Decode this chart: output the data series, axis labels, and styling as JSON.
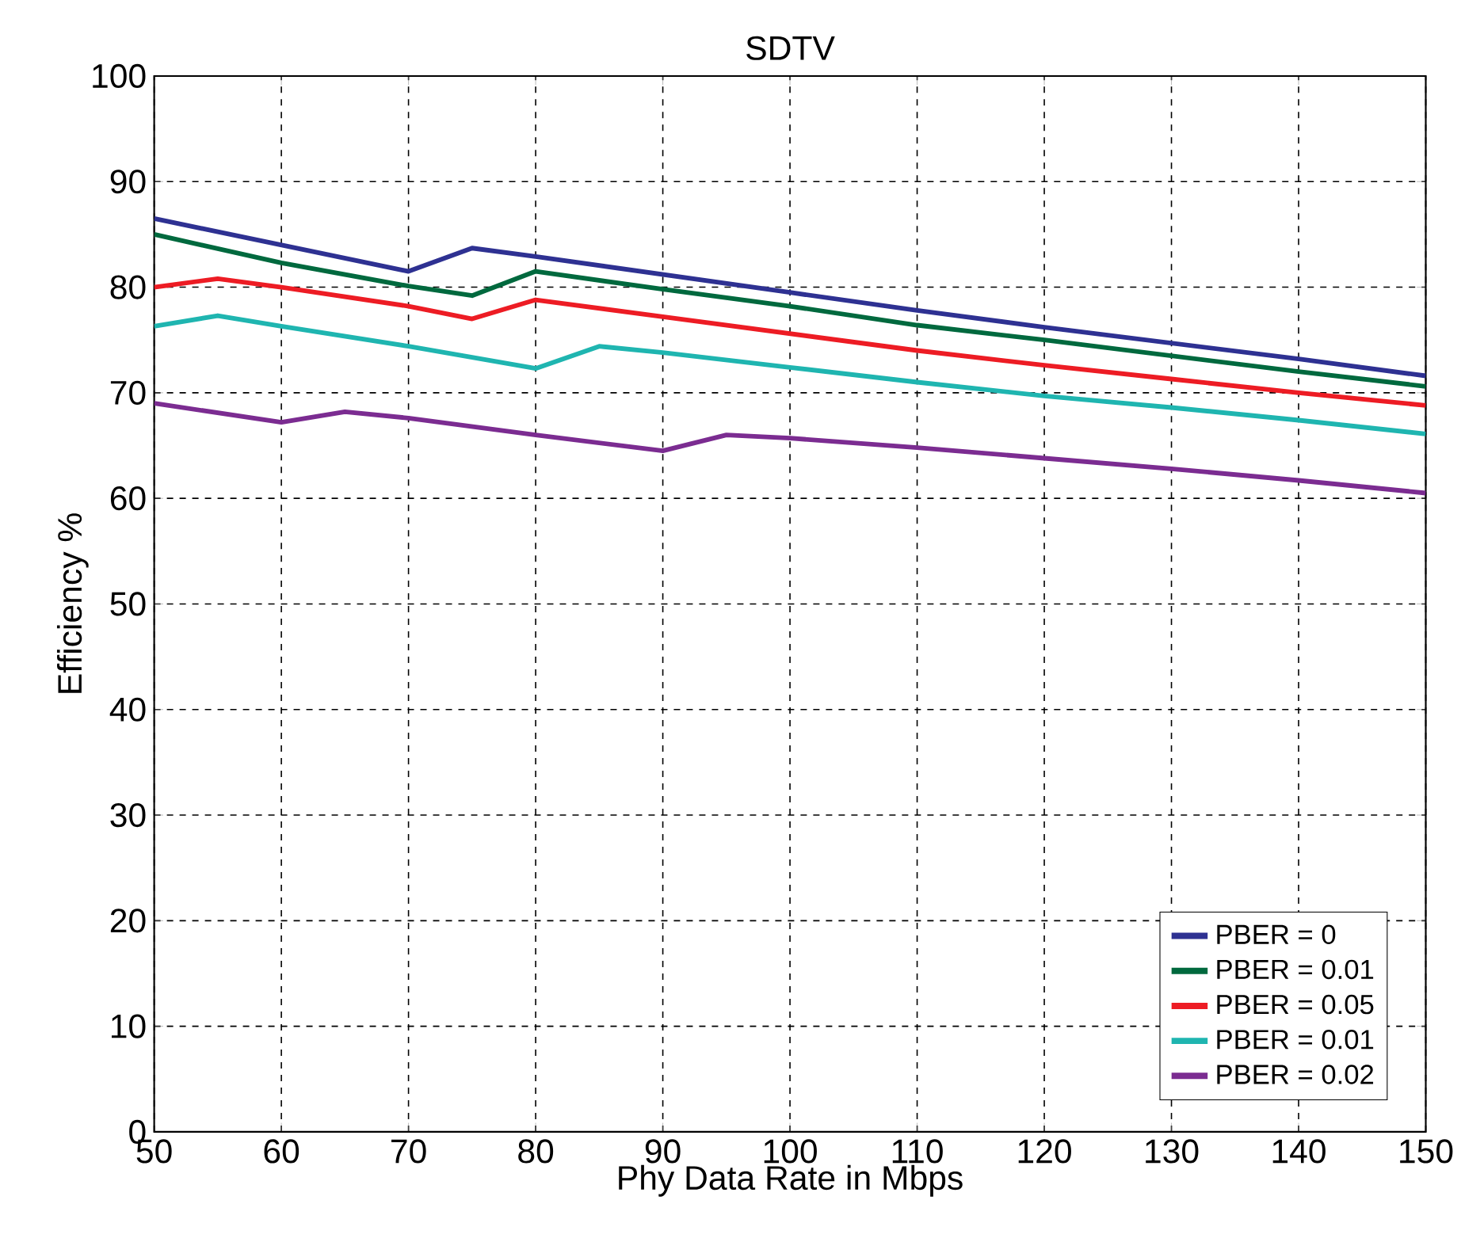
{
  "chart_data": {
    "type": "line",
    "title": "SDTV",
    "xlabel": "Phy Data Rate in Mbps",
    "ylabel": "Efficiency %",
    "xlim": [
      50,
      150
    ],
    "ylim": [
      0,
      100
    ],
    "xticks": [
      50,
      60,
      70,
      80,
      90,
      100,
      110,
      120,
      130,
      140,
      150
    ],
    "yticks": [
      0,
      10,
      20,
      30,
      40,
      50,
      60,
      70,
      80,
      90,
      100
    ],
    "grid": true,
    "legend": "bottom right",
    "marker": "none",
    "line_style": "solid",
    "series": [
      {
        "name": "PBER = 0",
        "color": "#2e3192",
        "x": [
          50,
          70,
          75,
          80,
          90,
          100,
          110,
          120,
          130,
          140,
          150
        ],
        "values": [
          86.5,
          81.5,
          83.7,
          82.9,
          81.2,
          79.5,
          77.8,
          76.2,
          74.7,
          73.2,
          71.6
        ]
      },
      {
        "name": "PBER = 0.01",
        "color": "#00693e",
        "x": [
          50,
          60,
          70,
          75,
          80,
          90,
          100,
          110,
          120,
          130,
          140,
          150
        ],
        "values": [
          85,
          82.3,
          80.1,
          79.2,
          81.5,
          79.8,
          78.2,
          76.4,
          75,
          73.5,
          72,
          70.6
        ]
      },
      {
        "name": "PBER = 0.05",
        "color": "#ed1c24",
        "x": [
          50,
          55,
          60,
          70,
          75,
          80,
          90,
          100,
          110,
          120,
          130,
          140,
          150
        ],
        "values": [
          80,
          80.8,
          80,
          78.2,
          77,
          78.8,
          77.2,
          75.6,
          74,
          72.6,
          71.3,
          70,
          68.8
        ]
      },
      {
        "name": "PBER = 0.01",
        "color": "#1fb5b0",
        "x": [
          50,
          55,
          60,
          70,
          80,
          85,
          90,
          100,
          110,
          120,
          130,
          140,
          150
        ],
        "values": [
          76.3,
          77.3,
          76.3,
          74.4,
          72.3,
          74.4,
          73.8,
          72.4,
          71,
          69.7,
          68.6,
          67.4,
          66.1
        ]
      },
      {
        "name": "PBER = 0.02",
        "color": "#7b2c91",
        "x": [
          50,
          60,
          65,
          70,
          80,
          90,
          95,
          100,
          110,
          120,
          130,
          140,
          150
        ],
        "values": [
          69,
          67.2,
          68.2,
          67.6,
          66,
          64.5,
          66,
          65.7,
          64.8,
          63.8,
          62.8,
          61.7,
          60.5
        ]
      }
    ]
  }
}
